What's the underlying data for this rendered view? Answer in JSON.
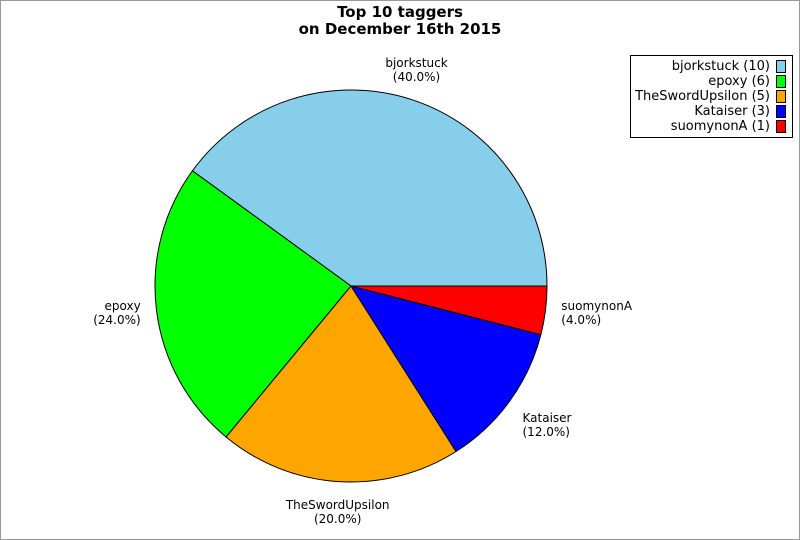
{
  "frame": {
    "background": "#ffffff",
    "border_color": "#999999"
  },
  "title": {
    "line1": "Top 10 taggers",
    "line2": "on December 16th 2015"
  },
  "chart_data": {
    "type": "pie",
    "title": "Top 10 taggers on December 16th 2015",
    "start_angle_deg": 0,
    "direction": "counterclockwise",
    "slice_outline_color": "#000000",
    "legend_position": "top-right",
    "slices": [
      {
        "label": "bjorkstuck",
        "value": 10,
        "percent": 40.0,
        "percent_label": "(40.0%)",
        "legend_label": "bjorkstuck (10)",
        "color": "#87CEEB"
      },
      {
        "label": "epoxy",
        "value": 6,
        "percent": 24.0,
        "percent_label": "(24.0%)",
        "legend_label": "epoxy (6)",
        "color": "#00FF00"
      },
      {
        "label": "TheSwordUpsilon",
        "value": 5,
        "percent": 20.0,
        "percent_label": "(20.0%)",
        "legend_label": "TheSwordUpsilon (5)",
        "color": "#FFA500"
      },
      {
        "label": "Kataiser",
        "value": 3,
        "percent": 12.0,
        "percent_label": "(12.0%)",
        "legend_label": "Kataiser (3)",
        "color": "#0000FF"
      },
      {
        "label": "suomynonA",
        "value": 1,
        "percent": 4.0,
        "percent_label": "(4.0%)",
        "legend_label": "suomynonA (1)",
        "color": "#FF0000"
      }
    ]
  }
}
